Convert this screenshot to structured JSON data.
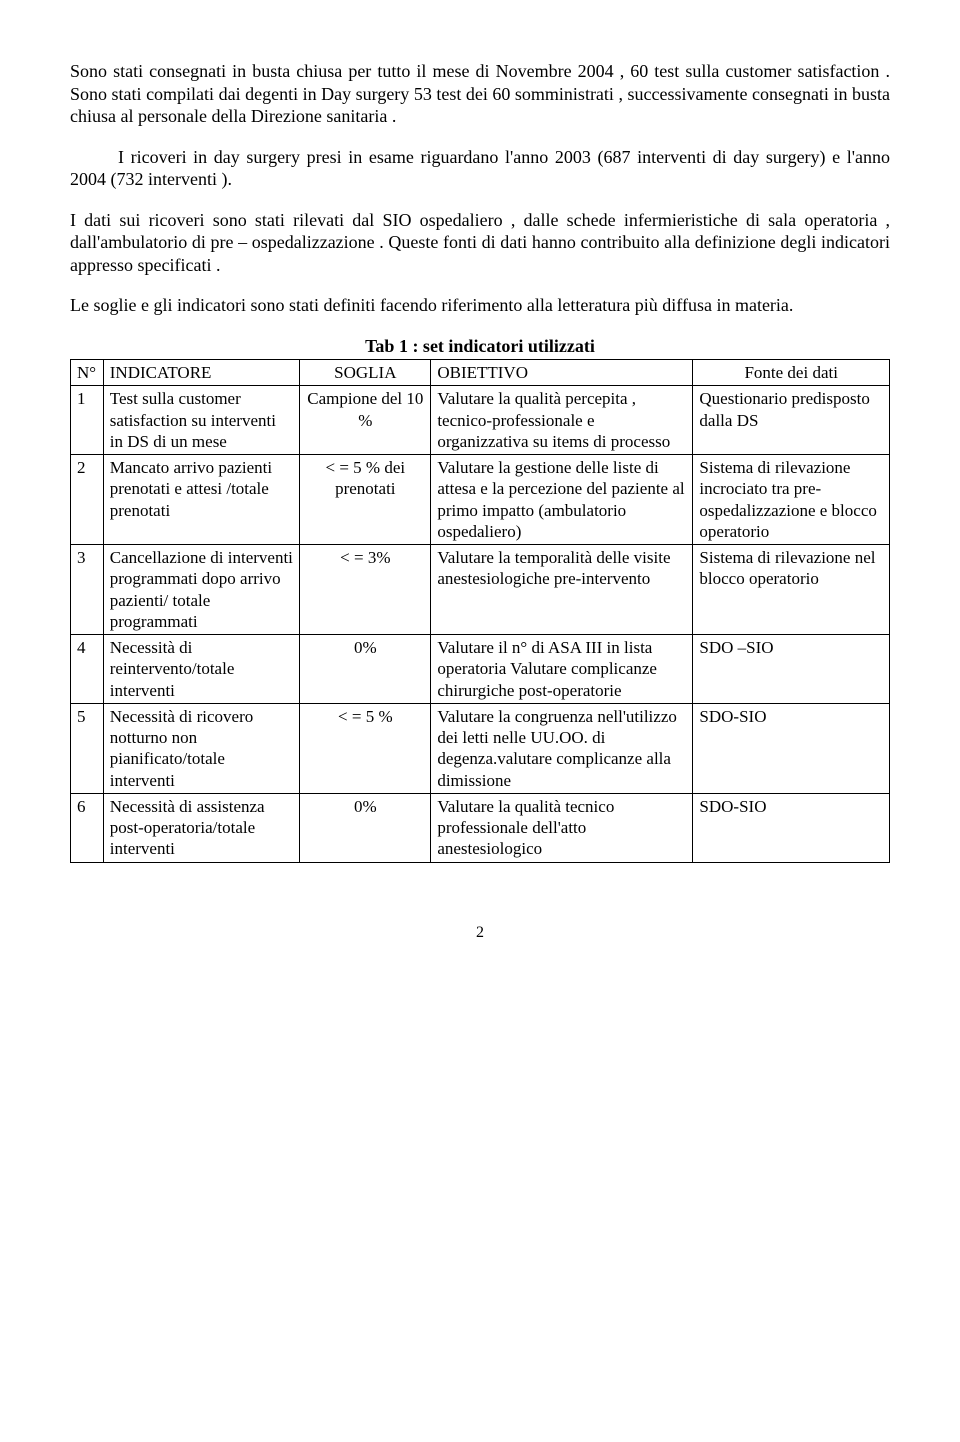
{
  "paragraphs": {
    "p1": "Sono stati consegnati in busta chiusa per tutto il mese di Novembre 2004 , 60 test sulla customer satisfaction . Sono stati compilati dai degenti in Day surgery 53 test dei 60 somministrati , successivamente consegnati in busta chiusa al personale della Direzione sanitaria .",
    "p2": "I ricoveri in day surgery presi in esame riguardano l'anno 2003 (687 interventi di day surgery) e l'anno 2004 (732 interventi ).",
    "p3": "I dati sui ricoveri sono stati rilevati dal SIO ospedaliero , dalle schede infermieristiche di sala operatoria , dall'ambulatorio di pre – ospedalizzazione . Queste fonti di dati hanno contribuito alla definizione degli indicatori appresso specificati .",
    "p4": "Le soglie e gli indicatori sono stati definiti facendo riferimento alla letteratura più diffusa in materia."
  },
  "table": {
    "title": "Tab 1 : set indicatori utilizzati",
    "headers": {
      "n": "N°",
      "indicatore": "INDICATORE",
      "soglia": "SOGLIA",
      "obiettivo": "OBIETTIVO",
      "fonte": "Fonte dei dati"
    },
    "rows": [
      {
        "n": "1",
        "indicatore": "Test sulla customer satisfaction su interventi in DS di un mese",
        "soglia": "Campione del 10 %",
        "obiettivo": "Valutare la qualità percepita , tecnico-professionale e organizzativa su items di processo",
        "fonte": "Questionario predisposto dalla DS"
      },
      {
        "n": "2",
        "indicatore": "Mancato arrivo pazienti prenotati e attesi /totale prenotati",
        "soglia": "< = 5 % dei prenotati",
        "obiettivo": "Valutare la gestione delle liste di attesa e la percezione del paziente al primo impatto (ambulatorio ospedaliero)",
        "fonte": "Sistema di rilevazione incrociato tra pre-ospedalizzazione e blocco operatorio"
      },
      {
        "n": "3",
        "indicatore": "Cancellazione di interventi programmati dopo arrivo pazienti/ totale programmati",
        "soglia": "< = 3%",
        "obiettivo": "Valutare la temporalità delle visite anestesiologiche pre-intervento",
        "fonte": "Sistema di rilevazione nel blocco operatorio"
      },
      {
        "n": "4",
        "indicatore": "Necessità di reintervento/totale interventi",
        "soglia": "0%",
        "obiettivo": "Valutare il n° di ASA III in lista operatoria Valutare complicanze chirurgiche post-operatorie",
        "fonte": "SDO –SIO"
      },
      {
        "n": "5",
        "indicatore": "Necessità di ricovero notturno non pianificato/totale interventi",
        "soglia": "< = 5 %",
        "obiettivo": "Valutare la congruenza nell'utilizzo dei letti nelle UU.OO. di degenza.valutare complicanze alla dimissione",
        "fonte": "SDO-SIO"
      },
      {
        "n": "6",
        "indicatore": "Necessità di assistenza post-operatoria/totale interventi",
        "soglia": "0%",
        "obiettivo": "Valutare la qualità tecnico professionale dell'atto anestesiologico",
        "fonte": "SDO-SIO"
      }
    ]
  },
  "page_number": "2"
}
